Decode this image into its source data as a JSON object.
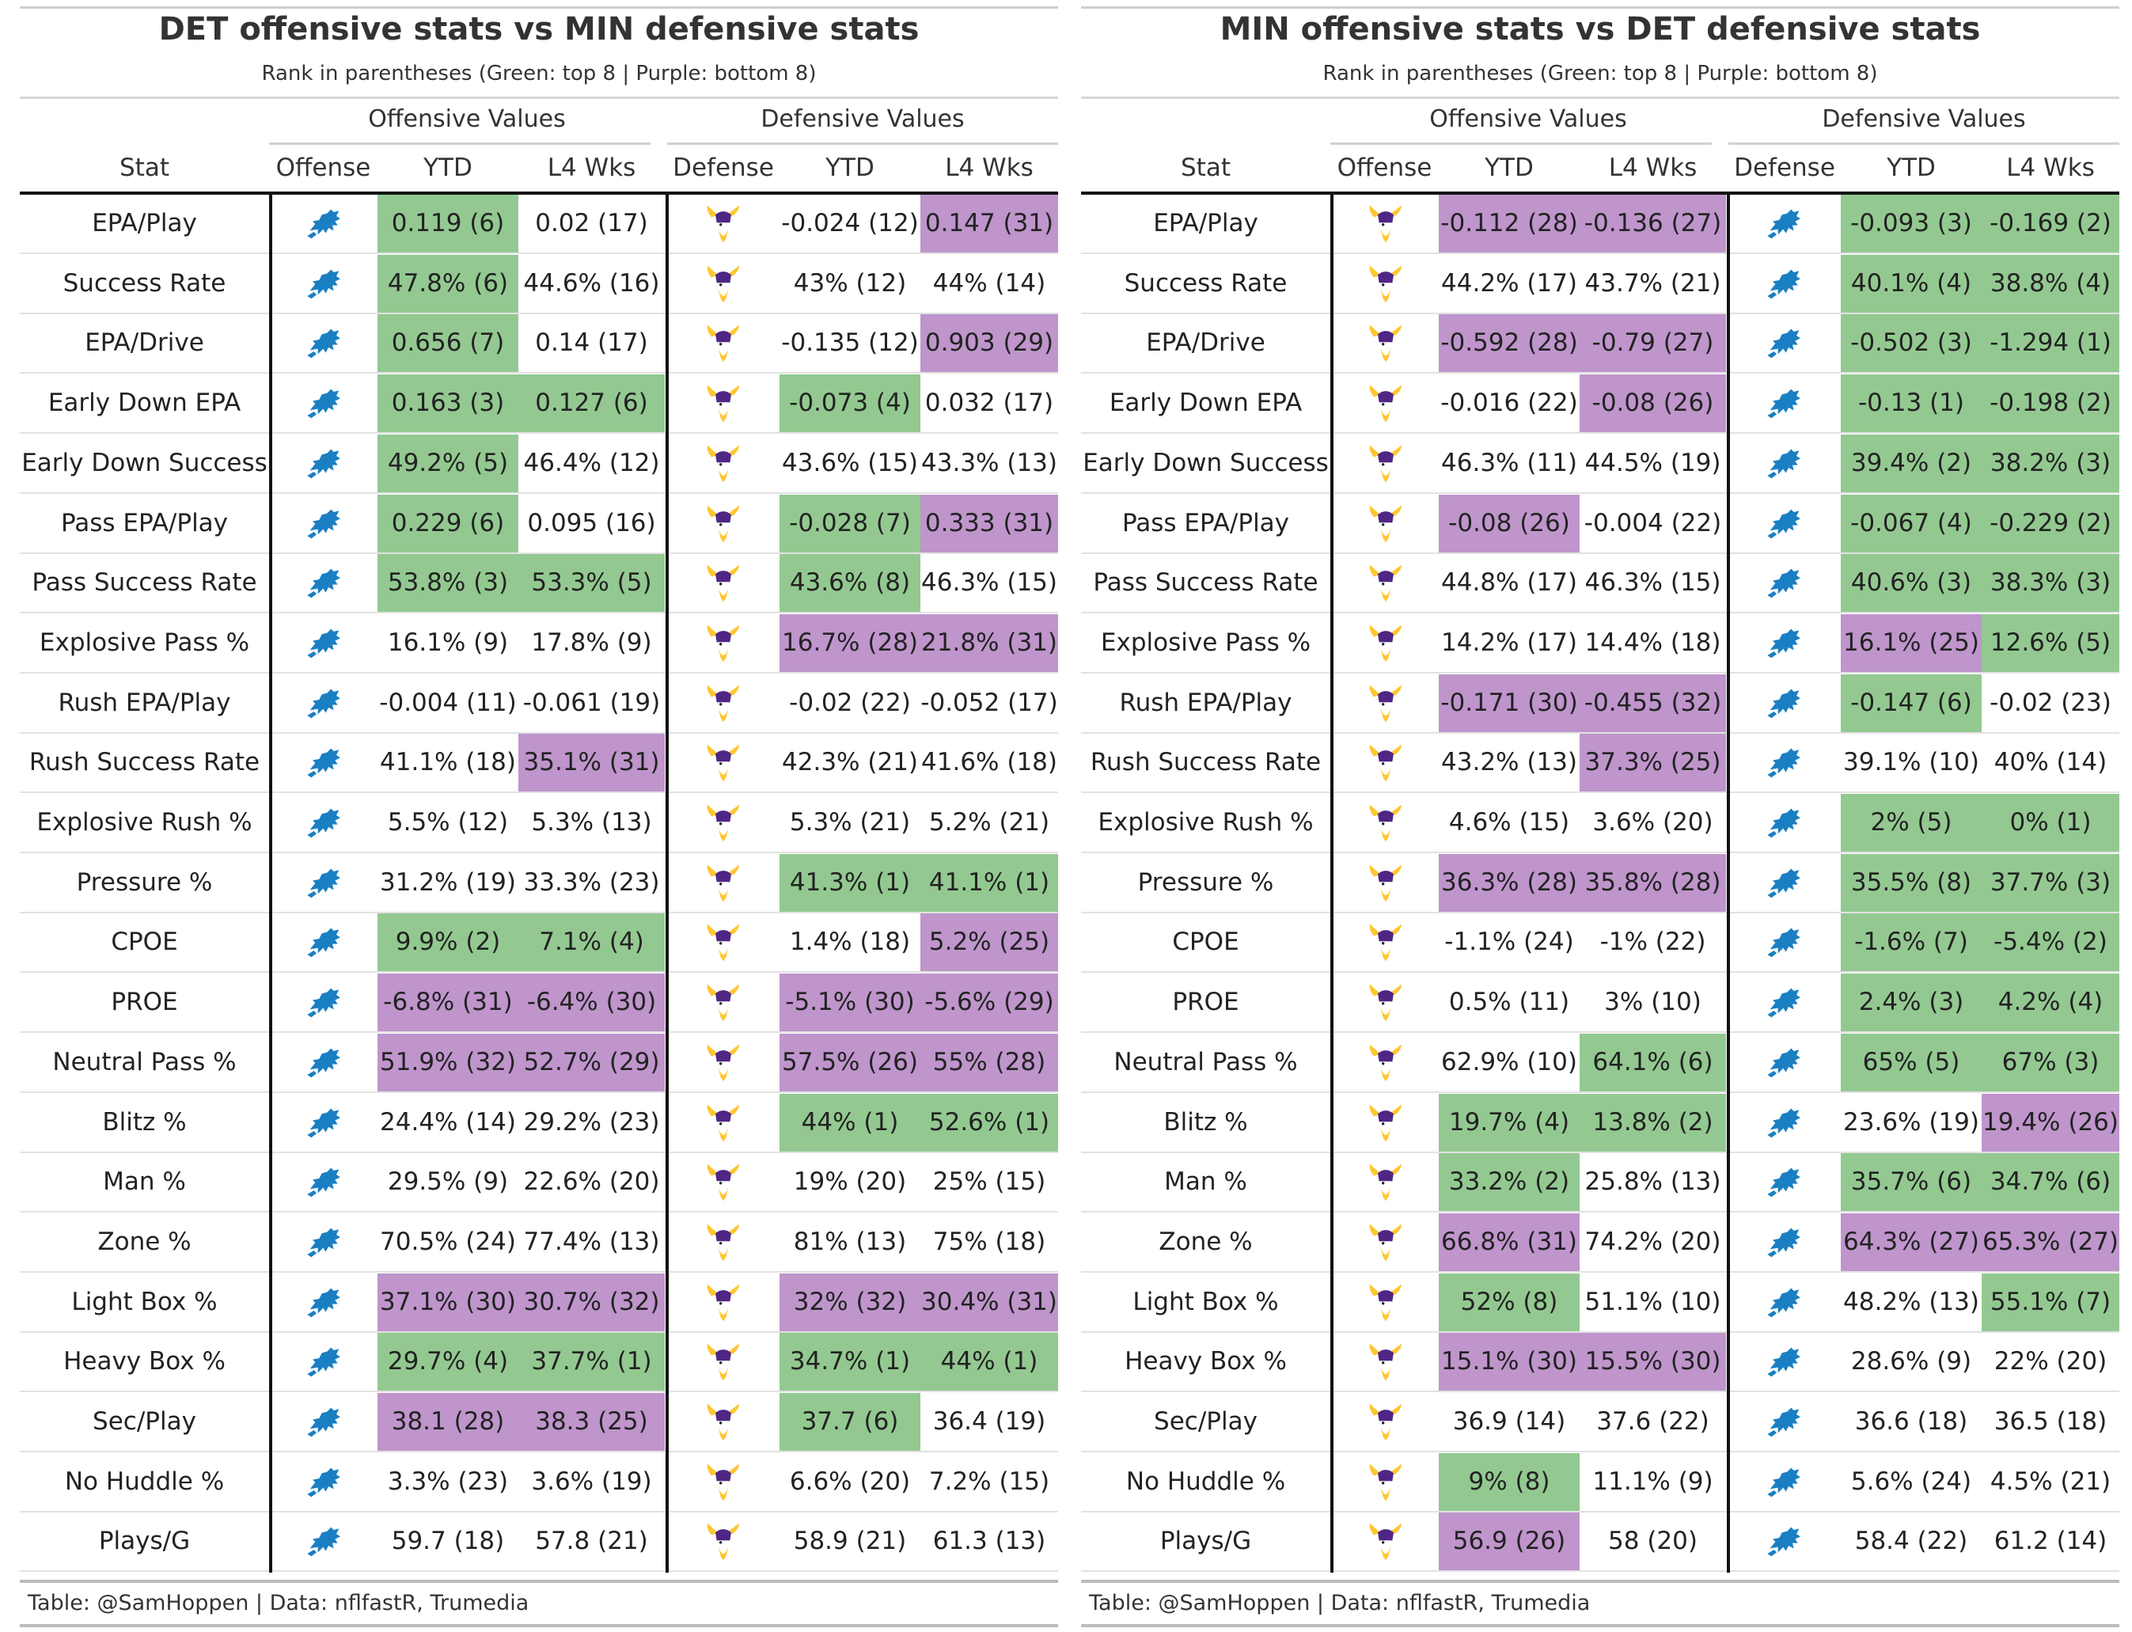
{
  "colors": {
    "green": "#93c991",
    "purple": "#bf95cc",
    "lions_blue": "#1a7fc2",
    "vikings_purple": "#4f2683",
    "vikings_gold": "#ffc62f"
  },
  "icons": {
    "lions": "lions-logo-icon",
    "vikings": "vikings-logo-icon"
  },
  "panels": [
    {
      "title": "DET offensive stats vs MIN defensive stats",
      "subtitle": "Rank in parentheses (Green: top 8 | Purple: bottom 8)",
      "spanner_off": "Offensive Values",
      "spanner_def": "Defensive Values",
      "headers": {
        "stat": "Stat",
        "offense": "Offense",
        "ytd": "YTD",
        "l4": "L4 Wks",
        "defense": "Defense",
        "dytd": "YTD",
        "dl4": "L4 Wks"
      },
      "offense_team": "lions",
      "defense_team": "vikings",
      "rows": [
        {
          "stat": "EPA/Play",
          "off_ytd": "0.119 (6)",
          "off_ytd_c": "green",
          "off_l4": "0.02 (17)",
          "off_l4_c": "",
          "def_ytd": "-0.024 (12)",
          "def_ytd_c": "",
          "def_l4": "0.147 (31)",
          "def_l4_c": "purple"
        },
        {
          "stat": "Success Rate",
          "off_ytd": "47.8% (6)",
          "off_ytd_c": "green",
          "off_l4": "44.6% (16)",
          "off_l4_c": "",
          "def_ytd": "43% (12)",
          "def_ytd_c": "",
          "def_l4": "44% (14)",
          "def_l4_c": ""
        },
        {
          "stat": "EPA/Drive",
          "off_ytd": "0.656 (7)",
          "off_ytd_c": "green",
          "off_l4": "0.14 (17)",
          "off_l4_c": "",
          "def_ytd": "-0.135 (12)",
          "def_ytd_c": "",
          "def_l4": "0.903 (29)",
          "def_l4_c": "purple"
        },
        {
          "stat": "Early Down EPA",
          "off_ytd": "0.163 (3)",
          "off_ytd_c": "green",
          "off_l4": "0.127 (6)",
          "off_l4_c": "green",
          "def_ytd": "-0.073 (4)",
          "def_ytd_c": "green",
          "def_l4": "0.032 (17)",
          "def_l4_c": ""
        },
        {
          "stat": "Early Down Success",
          "off_ytd": "49.2% (5)",
          "off_ytd_c": "green",
          "off_l4": "46.4% (12)",
          "off_l4_c": "",
          "def_ytd": "43.6% (15)",
          "def_ytd_c": "",
          "def_l4": "43.3% (13)",
          "def_l4_c": ""
        },
        {
          "stat": "Pass EPA/Play",
          "off_ytd": "0.229 (6)",
          "off_ytd_c": "green",
          "off_l4": "0.095 (16)",
          "off_l4_c": "",
          "def_ytd": "-0.028 (7)",
          "def_ytd_c": "green",
          "def_l4": "0.333 (31)",
          "def_l4_c": "purple"
        },
        {
          "stat": "Pass Success Rate",
          "off_ytd": "53.8% (3)",
          "off_ytd_c": "green",
          "off_l4": "53.3% (5)",
          "off_l4_c": "green",
          "def_ytd": "43.6% (8)",
          "def_ytd_c": "green",
          "def_l4": "46.3% (15)",
          "def_l4_c": ""
        },
        {
          "stat": "Explosive Pass %",
          "off_ytd": "16.1% (9)",
          "off_ytd_c": "",
          "off_l4": "17.8% (9)",
          "off_l4_c": "",
          "def_ytd": "16.7% (28)",
          "def_ytd_c": "purple",
          "def_l4": "21.8% (31)",
          "def_l4_c": "purple"
        },
        {
          "stat": "Rush EPA/Play",
          "off_ytd": "-0.004 (11)",
          "off_ytd_c": "",
          "off_l4": "-0.061 (19)",
          "off_l4_c": "",
          "def_ytd": "-0.02 (22)",
          "def_ytd_c": "",
          "def_l4": "-0.052 (17)",
          "def_l4_c": ""
        },
        {
          "stat": "Rush Success Rate",
          "off_ytd": "41.1% (18)",
          "off_ytd_c": "",
          "off_l4": "35.1% (31)",
          "off_l4_c": "purple",
          "def_ytd": "42.3% (21)",
          "def_ytd_c": "",
          "def_l4": "41.6% (18)",
          "def_l4_c": ""
        },
        {
          "stat": "Explosive Rush %",
          "off_ytd": "5.5% (12)",
          "off_ytd_c": "",
          "off_l4": "5.3% (13)",
          "off_l4_c": "",
          "def_ytd": "5.3% (21)",
          "def_ytd_c": "",
          "def_l4": "5.2% (21)",
          "def_l4_c": ""
        },
        {
          "stat": "Pressure %",
          "off_ytd": "31.2% (19)",
          "off_ytd_c": "",
          "off_l4": "33.3% (23)",
          "off_l4_c": "",
          "def_ytd": "41.3% (1)",
          "def_ytd_c": "green",
          "def_l4": "41.1% (1)",
          "def_l4_c": "green"
        },
        {
          "stat": "CPOE",
          "off_ytd": "9.9% (2)",
          "off_ytd_c": "green",
          "off_l4": "7.1% (4)",
          "off_l4_c": "green",
          "def_ytd": "1.4% (18)",
          "def_ytd_c": "",
          "def_l4": "5.2% (25)",
          "def_l4_c": "purple"
        },
        {
          "stat": "PROE",
          "off_ytd": "-6.8% (31)",
          "off_ytd_c": "purple",
          "off_l4": "-6.4% (30)",
          "off_l4_c": "purple",
          "def_ytd": "-5.1% (30)",
          "def_ytd_c": "purple",
          "def_l4": "-5.6% (29)",
          "def_l4_c": "purple"
        },
        {
          "stat": "Neutral Pass %",
          "off_ytd": "51.9% (32)",
          "off_ytd_c": "purple",
          "off_l4": "52.7% (29)",
          "off_l4_c": "purple",
          "def_ytd": "57.5% (26)",
          "def_ytd_c": "purple",
          "def_l4": "55% (28)",
          "def_l4_c": "purple"
        },
        {
          "stat": "Blitz %",
          "off_ytd": "24.4% (14)",
          "off_ytd_c": "",
          "off_l4": "29.2% (23)",
          "off_l4_c": "",
          "def_ytd": "44% (1)",
          "def_ytd_c": "green",
          "def_l4": "52.6% (1)",
          "def_l4_c": "green"
        },
        {
          "stat": "Man %",
          "off_ytd": "29.5% (9)",
          "off_ytd_c": "",
          "off_l4": "22.6% (20)",
          "off_l4_c": "",
          "def_ytd": "19% (20)",
          "def_ytd_c": "",
          "def_l4": "25% (15)",
          "def_l4_c": ""
        },
        {
          "stat": "Zone %",
          "off_ytd": "70.5% (24)",
          "off_ytd_c": "",
          "off_l4": "77.4% (13)",
          "off_l4_c": "",
          "def_ytd": "81% (13)",
          "def_ytd_c": "",
          "def_l4": "75% (18)",
          "def_l4_c": ""
        },
        {
          "stat": "Light Box %",
          "off_ytd": "37.1% (30)",
          "off_ytd_c": "purple",
          "off_l4": "30.7% (32)",
          "off_l4_c": "purple",
          "def_ytd": "32% (32)",
          "def_ytd_c": "purple",
          "def_l4": "30.4% (31)",
          "def_l4_c": "purple"
        },
        {
          "stat": "Heavy Box %",
          "off_ytd": "29.7% (4)",
          "off_ytd_c": "green",
          "off_l4": "37.7% (1)",
          "off_l4_c": "green",
          "def_ytd": "34.7% (1)",
          "def_ytd_c": "green",
          "def_l4": "44% (1)",
          "def_l4_c": "green"
        },
        {
          "stat": "Sec/Play",
          "off_ytd": "38.1 (28)",
          "off_ytd_c": "purple",
          "off_l4": "38.3 (25)",
          "off_l4_c": "purple",
          "def_ytd": "37.7 (6)",
          "def_ytd_c": "green",
          "def_l4": "36.4 (19)",
          "def_l4_c": ""
        },
        {
          "stat": "No Huddle %",
          "off_ytd": "3.3% (23)",
          "off_ytd_c": "",
          "off_l4": "3.6% (19)",
          "off_l4_c": "",
          "def_ytd": "6.6% (20)",
          "def_ytd_c": "",
          "def_l4": "7.2% (15)",
          "def_l4_c": ""
        },
        {
          "stat": "Plays/G",
          "off_ytd": "59.7 (18)",
          "off_ytd_c": "",
          "off_l4": "57.8 (21)",
          "off_l4_c": "",
          "def_ytd": "58.9 (21)",
          "def_ytd_c": "",
          "def_l4": "61.3 (13)",
          "def_l4_c": ""
        }
      ],
      "footer": "Table: @SamHoppen | Data: nflfastR, Trumedia"
    },
    {
      "title": "MIN offensive stats vs DET defensive stats",
      "subtitle": "Rank in parentheses (Green: top 8 | Purple: bottom 8)",
      "spanner_off": "Offensive Values",
      "spanner_def": "Defensive Values",
      "headers": {
        "stat": "Stat",
        "offense": "Offense",
        "ytd": "YTD",
        "l4": "L4 Wks",
        "defense": "Defense",
        "dytd": "YTD",
        "dl4": "L4 Wks"
      },
      "offense_team": "vikings",
      "defense_team": "lions",
      "rows": [
        {
          "stat": "EPA/Play",
          "off_ytd": "-0.112 (28)",
          "off_ytd_c": "purple",
          "off_l4": "-0.136 (27)",
          "off_l4_c": "purple",
          "def_ytd": "-0.093 (3)",
          "def_ytd_c": "green",
          "def_l4": "-0.169 (2)",
          "def_l4_c": "green"
        },
        {
          "stat": "Success Rate",
          "off_ytd": "44.2% (17)",
          "off_ytd_c": "",
          "off_l4": "43.7% (21)",
          "off_l4_c": "",
          "def_ytd": "40.1% (4)",
          "def_ytd_c": "green",
          "def_l4": "38.8% (4)",
          "def_l4_c": "green"
        },
        {
          "stat": "EPA/Drive",
          "off_ytd": "-0.592 (28)",
          "off_ytd_c": "purple",
          "off_l4": "-0.79 (27)",
          "off_l4_c": "purple",
          "def_ytd": "-0.502 (3)",
          "def_ytd_c": "green",
          "def_l4": "-1.294 (1)",
          "def_l4_c": "green"
        },
        {
          "stat": "Early Down EPA",
          "off_ytd": "-0.016 (22)",
          "off_ytd_c": "",
          "off_l4": "-0.08 (26)",
          "off_l4_c": "purple",
          "def_ytd": "-0.13 (1)",
          "def_ytd_c": "green",
          "def_l4": "-0.198 (2)",
          "def_l4_c": "green"
        },
        {
          "stat": "Early Down Success",
          "off_ytd": "46.3% (11)",
          "off_ytd_c": "",
          "off_l4": "44.5% (19)",
          "off_l4_c": "",
          "def_ytd": "39.4% (2)",
          "def_ytd_c": "green",
          "def_l4": "38.2% (3)",
          "def_l4_c": "green"
        },
        {
          "stat": "Pass EPA/Play",
          "off_ytd": "-0.08 (26)",
          "off_ytd_c": "purple",
          "off_l4": "-0.004 (22)",
          "off_l4_c": "",
          "def_ytd": "-0.067 (4)",
          "def_ytd_c": "green",
          "def_l4": "-0.229 (2)",
          "def_l4_c": "green"
        },
        {
          "stat": "Pass Success Rate",
          "off_ytd": "44.8% (17)",
          "off_ytd_c": "",
          "off_l4": "46.3% (15)",
          "off_l4_c": "",
          "def_ytd": "40.6% (3)",
          "def_ytd_c": "green",
          "def_l4": "38.3% (3)",
          "def_l4_c": "green"
        },
        {
          "stat": "Explosive Pass %",
          "off_ytd": "14.2% (17)",
          "off_ytd_c": "",
          "off_l4": "14.4% (18)",
          "off_l4_c": "",
          "def_ytd": "16.1% (25)",
          "def_ytd_c": "purple",
          "def_l4": "12.6% (5)",
          "def_l4_c": "green"
        },
        {
          "stat": "Rush EPA/Play",
          "off_ytd": "-0.171 (30)",
          "off_ytd_c": "purple",
          "off_l4": "-0.455 (32)",
          "off_l4_c": "purple",
          "def_ytd": "-0.147 (6)",
          "def_ytd_c": "green",
          "def_l4": "-0.02 (23)",
          "def_l4_c": ""
        },
        {
          "stat": "Rush Success Rate",
          "off_ytd": "43.2% (13)",
          "off_ytd_c": "",
          "off_l4": "37.3% (25)",
          "off_l4_c": "purple",
          "def_ytd": "39.1% (10)",
          "def_ytd_c": "",
          "def_l4": "40% (14)",
          "def_l4_c": ""
        },
        {
          "stat": "Explosive Rush %",
          "off_ytd": "4.6% (15)",
          "off_ytd_c": "",
          "off_l4": "3.6% (20)",
          "off_l4_c": "",
          "def_ytd": "2% (5)",
          "def_ytd_c": "green",
          "def_l4": "0% (1)",
          "def_l4_c": "green"
        },
        {
          "stat": "Pressure %",
          "off_ytd": "36.3% (28)",
          "off_ytd_c": "purple",
          "off_l4": "35.8% (28)",
          "off_l4_c": "purple",
          "def_ytd": "35.5% (8)",
          "def_ytd_c": "green",
          "def_l4": "37.7% (3)",
          "def_l4_c": "green"
        },
        {
          "stat": "CPOE",
          "off_ytd": "-1.1% (24)",
          "off_ytd_c": "",
          "off_l4": "-1% (22)",
          "off_l4_c": "",
          "def_ytd": "-1.6% (7)",
          "def_ytd_c": "green",
          "def_l4": "-5.4% (2)",
          "def_l4_c": "green"
        },
        {
          "stat": "PROE",
          "off_ytd": "0.5% (11)",
          "off_ytd_c": "",
          "off_l4": "3% (10)",
          "off_l4_c": "",
          "def_ytd": "2.4% (3)",
          "def_ytd_c": "green",
          "def_l4": "4.2% (4)",
          "def_l4_c": "green"
        },
        {
          "stat": "Neutral Pass %",
          "off_ytd": "62.9% (10)",
          "off_ytd_c": "",
          "off_l4": "64.1% (6)",
          "off_l4_c": "green",
          "def_ytd": "65% (5)",
          "def_ytd_c": "green",
          "def_l4": "67% (3)",
          "def_l4_c": "green"
        },
        {
          "stat": "Blitz %",
          "off_ytd": "19.7% (4)",
          "off_ytd_c": "green",
          "off_l4": "13.8% (2)",
          "off_l4_c": "green",
          "def_ytd": "23.6% (19)",
          "def_ytd_c": "",
          "def_l4": "19.4% (26)",
          "def_l4_c": "purple"
        },
        {
          "stat": "Man %",
          "off_ytd": "33.2% (2)",
          "off_ytd_c": "green",
          "off_l4": "25.8% (13)",
          "off_l4_c": "",
          "def_ytd": "35.7% (6)",
          "def_ytd_c": "green",
          "def_l4": "34.7% (6)",
          "def_l4_c": "green"
        },
        {
          "stat": "Zone %",
          "off_ytd": "66.8% (31)",
          "off_ytd_c": "purple",
          "off_l4": "74.2% (20)",
          "off_l4_c": "",
          "def_ytd": "64.3% (27)",
          "def_ytd_c": "purple",
          "def_l4": "65.3% (27)",
          "def_l4_c": "purple"
        },
        {
          "stat": "Light Box %",
          "off_ytd": "52% (8)",
          "off_ytd_c": "green",
          "off_l4": "51.1% (10)",
          "off_l4_c": "",
          "def_ytd": "48.2% (13)",
          "def_ytd_c": "",
          "def_l4": "55.1% (7)",
          "def_l4_c": "green"
        },
        {
          "stat": "Heavy Box %",
          "off_ytd": "15.1% (30)",
          "off_ytd_c": "purple",
          "off_l4": "15.5% (30)",
          "off_l4_c": "purple",
          "def_ytd": "28.6% (9)",
          "def_ytd_c": "",
          "def_l4": "22% (20)",
          "def_l4_c": ""
        },
        {
          "stat": "Sec/Play",
          "off_ytd": "36.9 (14)",
          "off_ytd_c": "",
          "off_l4": "37.6 (22)",
          "off_l4_c": "",
          "def_ytd": "36.6 (18)",
          "def_ytd_c": "",
          "def_l4": "36.5 (18)",
          "def_l4_c": ""
        },
        {
          "stat": "No Huddle %",
          "off_ytd": "9% (8)",
          "off_ytd_c": "green",
          "off_l4": "11.1% (9)",
          "off_l4_c": "",
          "def_ytd": "5.6% (24)",
          "def_ytd_c": "",
          "def_l4": "4.5% (21)",
          "def_l4_c": ""
        },
        {
          "stat": "Plays/G",
          "off_ytd": "56.9 (26)",
          "off_ytd_c": "purple",
          "off_l4": "58 (20)",
          "off_l4_c": "",
          "def_ytd": "58.4 (22)",
          "def_ytd_c": "",
          "def_l4": "61.2 (14)",
          "def_l4_c": ""
        }
      ],
      "footer": "Table: @SamHoppen | Data: nflfastR, Trumedia"
    }
  ]
}
